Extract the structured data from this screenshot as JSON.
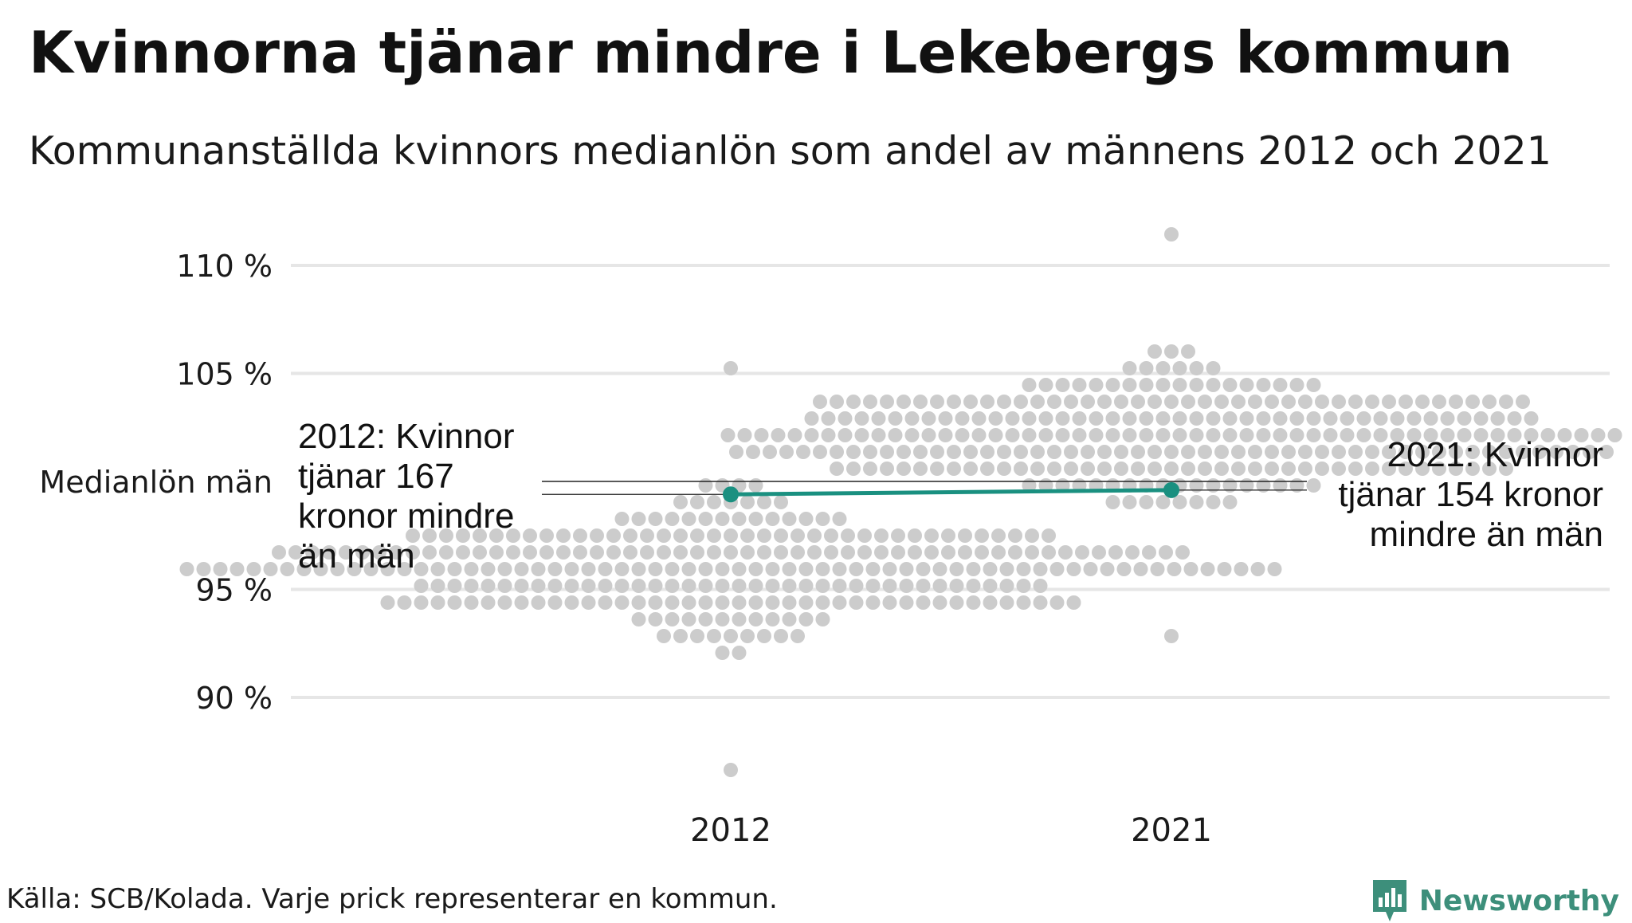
{
  "title": "Kvinnorna tjänar mindre i Lekebergs kommun",
  "subtitle": "Kommunanställda kvinnors medianlön som andel av männens 2012 och 2021",
  "annotations": {
    "left": "2012: Kvinnor\ntjänar 167\nkronor mindre\nän män",
    "right": "2021: Kvinnor\ntjänar 154 kronor\nmindre än män"
  },
  "source": "Källa: SCB/Kolada. Varje prick representerar en kommun.",
  "brand": {
    "name": "Newsworthy",
    "color": "#3d8f7b",
    "icon": "newsworthy-logo-icon"
  },
  "colors": {
    "dots": "#cccccc",
    "highlight": "#1a9080",
    "gridline": "#e6e6e6",
    "reference_line": "#222222"
  },
  "chart_data": {
    "type": "scatter",
    "variant": "beeswarm",
    "categories": [
      "2012",
      "2021"
    ],
    "y_ticks": [
      90,
      95,
      100,
      105,
      110
    ],
    "y_tick_labels": [
      "90 %",
      "95 %",
      "Medianlön män",
      "105 %",
      "110 %"
    ],
    "ylim": [
      86,
      112
    ],
    "reference_line": {
      "value": 100,
      "label": "Medianlön män"
    },
    "highlight": {
      "name": "Lekebergs kommun",
      "points": [
        {
          "category": "2012",
          "value": 99.4
        },
        {
          "category": "2021",
          "value": 99.6
        }
      ]
    },
    "distributions": [
      {
        "category": "2012",
        "count": 290,
        "min": 86.5,
        "max": 105.2,
        "center": 96.0
      },
      {
        "category": "2021",
        "count": 290,
        "min": 92.5,
        "max": 111.3,
        "center": 102.0
      }
    ]
  }
}
